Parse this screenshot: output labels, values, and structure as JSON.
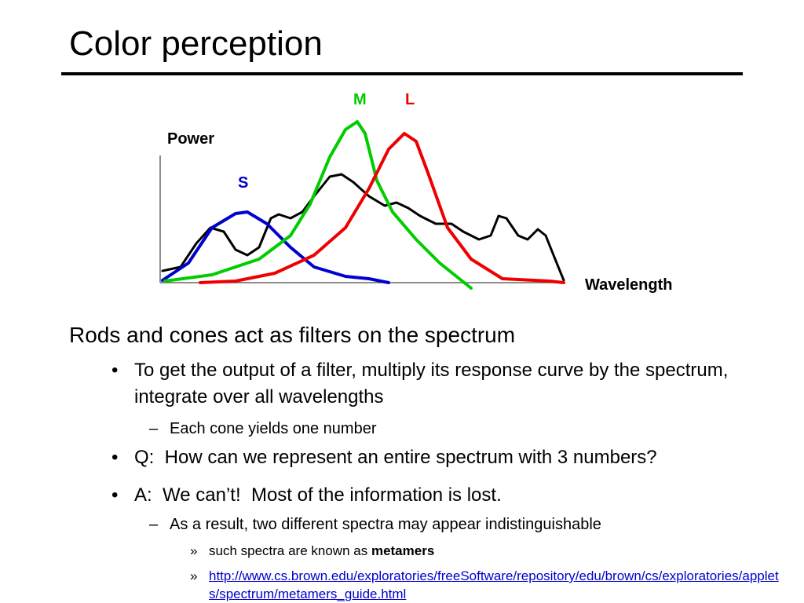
{
  "title": "Color perception",
  "diagram": {
    "y_axis_label": "Power",
    "x_axis_label": "Wavelength",
    "curve_labels": {
      "s": "S",
      "m": "M",
      "l": "L"
    }
  },
  "heading": "Rods and cones act as filters on the spectrum",
  "bullets": [
    {
      "marker": "•",
      "text": "To get the output of a filter, multiply its response curve by the spectrum, integrate over all wavelengths",
      "sub": [
        {
          "marker": "–",
          "text": "Each cone yields one number"
        }
      ]
    },
    {
      "marker": "•",
      "text": "Q:  How can we represent an entire spectrum with 3 numbers?"
    },
    {
      "marker": "•",
      "text": "A:  We can’t!  Most of the information is lost.",
      "sub": [
        {
          "marker": "–",
          "text": "As a result, two different spectra may appear indistinguishable",
          "sub": [
            {
              "marker": "»",
              "text": "such spectra are known as ",
              "bold": "metamers"
            },
            {
              "marker": "»",
              "link": "http://www.cs.brown.edu/exploratories/freeSoftware/repository/edu/brown/cs/exploratories/applets/spectrum/metamers_guide.html"
            }
          ]
        }
      ]
    }
  ]
}
